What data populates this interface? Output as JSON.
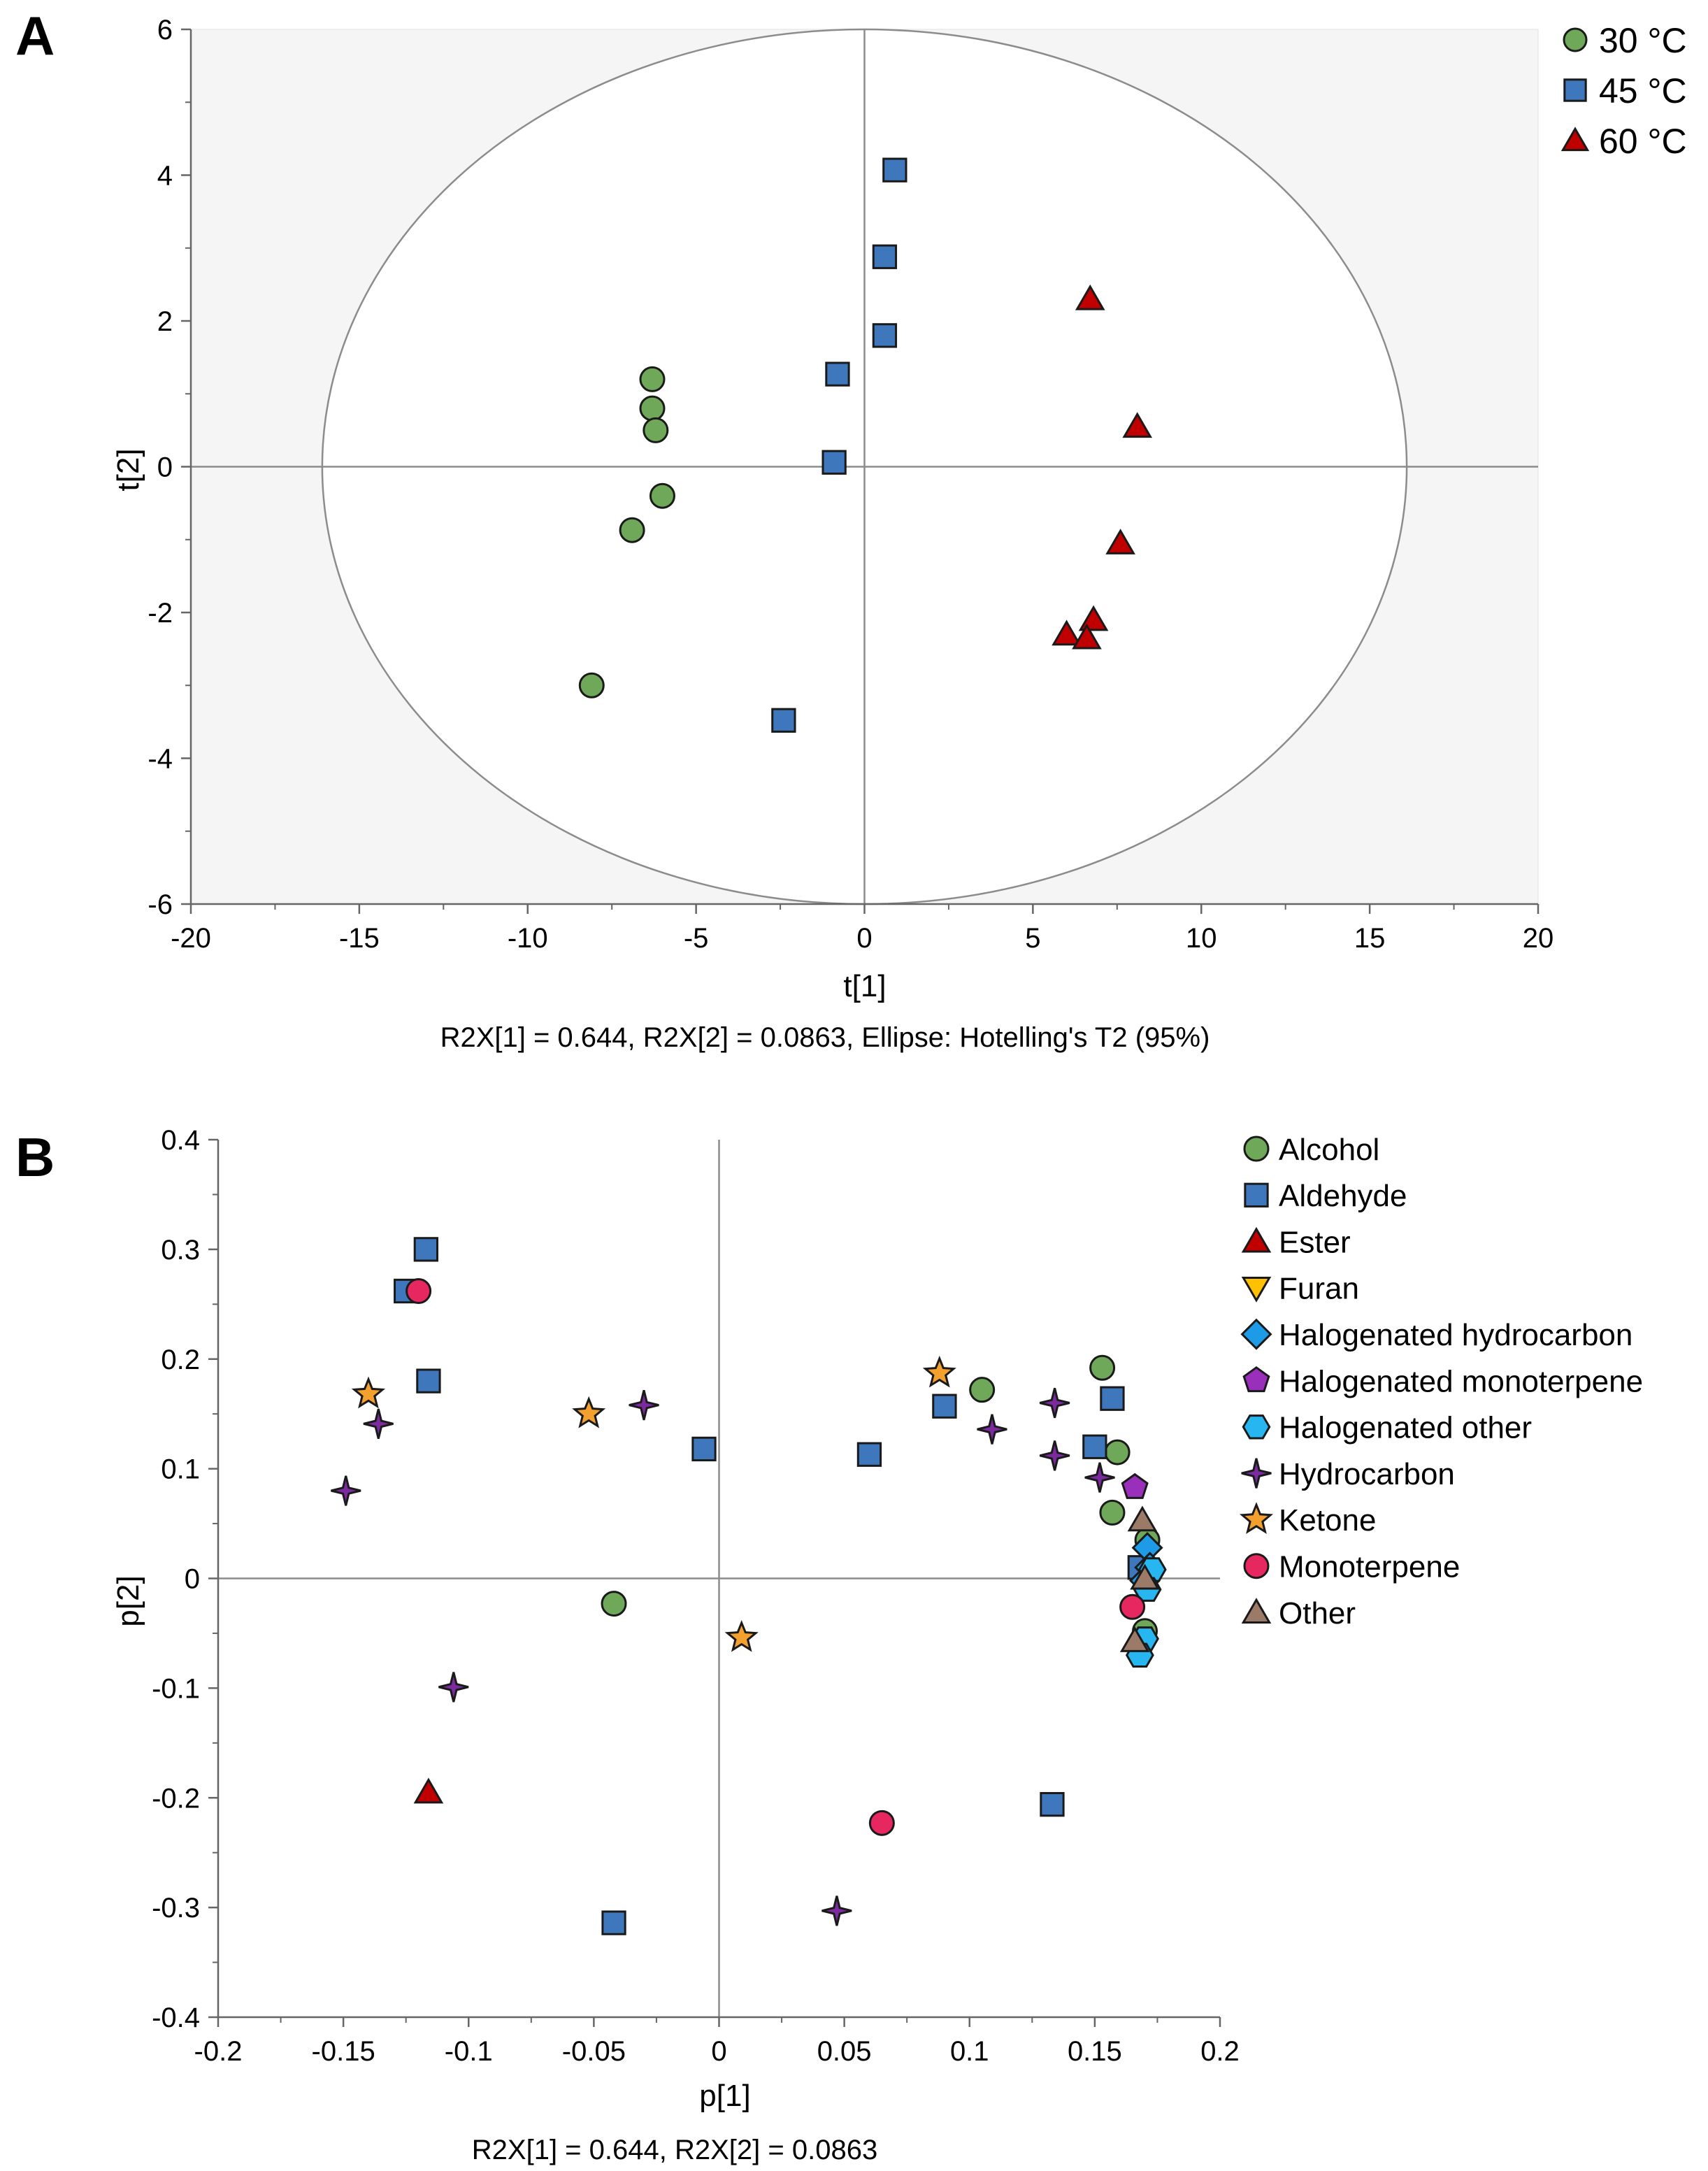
{
  "chart_data": [
    {
      "panel_label": "A",
      "type": "scatter",
      "title": "",
      "xlabel": "t[1]",
      "ylabel": "t[2]",
      "xlim": [
        -20,
        20
      ],
      "ylim": [
        -6,
        6
      ],
      "xticks": [
        "-20",
        "-15",
        "-10",
        "-5",
        "0",
        "5",
        "10",
        "15",
        "20"
      ],
      "yticks": [
        "6",
        "4",
        "2",
        "0",
        "-2",
        "-4",
        "-6"
      ],
      "caption": "R2X[1] = 0.644, R2X[2] = 0.0863, Ellipse: Hotelling's T2 (95%)",
      "ellipse": {
        "rx": 16.1,
        "ry": 6.0
      },
      "legend_position": "top-right",
      "series": [
        {
          "name": "30 °C",
          "marker": "circle",
          "color": "#70a85a",
          "points": [
            [
              -6.3,
              1.2
            ],
            [
              -6.3,
              0.8
            ],
            [
              -6.2,
              0.5
            ],
            [
              -6.0,
              -0.4
            ],
            [
              -6.9,
              -0.87
            ],
            [
              -8.1,
              -3.0
            ]
          ]
        },
        {
          "name": "45 °C",
          "marker": "square",
          "color": "#3f77bd",
          "points": [
            [
              0.9,
              4.07
            ],
            [
              0.6,
              2.88
            ],
            [
              0.6,
              1.8
            ],
            [
              -0.8,
              1.27
            ],
            [
              -0.9,
              0.06
            ],
            [
              -2.4,
              -3.48
            ]
          ]
        },
        {
          "name": "60 °C",
          "marker": "triangle",
          "color": "#c00000",
          "points": [
            [
              6.7,
              2.3
            ],
            [
              8.1,
              0.55
            ],
            [
              7.6,
              -1.05
            ],
            [
              6.8,
              -2.1
            ],
            [
              6.0,
              -2.3
            ],
            [
              6.6,
              -2.35
            ]
          ]
        }
      ]
    },
    {
      "panel_label": "B",
      "type": "scatter",
      "title": "",
      "xlabel": "p[1]",
      "ylabel": "p[2]",
      "xlim": [
        -0.2,
        0.2
      ],
      "ylim": [
        -0.4,
        0.4
      ],
      "xticks": [
        "-0.2",
        "-0.15",
        "-0.1",
        "-0.05",
        "0",
        "0.05",
        "0.1",
        "0.15",
        "0.2"
      ],
      "yticks": [
        "0.4",
        "0.3",
        "0.2",
        "0.1",
        "0",
        "-0.1",
        "-0.2",
        "-0.3",
        "-0.4"
      ],
      "caption": "R2X[1] = 0.644, R2X[2] = 0.0863",
      "legend_position": "top-right",
      "series": [
        {
          "name": "Alcohol",
          "marker": "circle",
          "color": "#70a85a",
          "points": [
            [
              0.153,
              0.192
            ],
            [
              0.105,
              0.172
            ],
            [
              0.159,
              0.115
            ],
            [
              0.157,
              0.06
            ],
            [
              0.171,
              0.035
            ],
            [
              0.17,
              -0.048
            ],
            [
              -0.042,
              -0.023
            ]
          ]
        },
        {
          "name": "Aldehyde",
          "marker": "square",
          "color": "#3f77bd",
          "points": [
            [
              -0.117,
              0.3
            ],
            [
              -0.125,
              0.262
            ],
            [
              -0.116,
              0.18
            ],
            [
              -0.006,
              0.118
            ],
            [
              0.06,
              0.113
            ],
            [
              0.09,
              0.157
            ],
            [
              0.157,
              0.164
            ],
            [
              0.15,
              0.12
            ],
            [
              0.168,
              0.01
            ],
            [
              0.133,
              -0.206
            ],
            [
              -0.042,
              -0.314
            ]
          ]
        },
        {
          "name": "Ester",
          "marker": "triangle",
          "color": "#c00000",
          "points": [
            [
              -0.116,
              -0.195
            ]
          ]
        },
        {
          "name": "Furan",
          "marker": "triangle-down",
          "color": "#ffc000",
          "points": []
        },
        {
          "name": "Halogenated hydrocarbon",
          "marker": "diamond",
          "color": "#1e9be6",
          "points": [
            [
              0.171,
              0.028
            ],
            [
              0.172,
              0.01
            ],
            [
              0.17,
              -0.002
            ]
          ]
        },
        {
          "name": "Halogenated monoterpene",
          "marker": "pentagon",
          "color": "#9a2fbc",
          "points": [
            [
              0.166,
              0.083
            ]
          ]
        },
        {
          "name": "Halogenated other",
          "marker": "hexagon",
          "color": "#27b6f0",
          "points": [
            [
              0.173,
              0.008
            ],
            [
              0.171,
              -0.01
            ],
            [
              0.17,
              -0.055
            ],
            [
              0.168,
              -0.07
            ]
          ]
        },
        {
          "name": "Hydrocarbon",
          "marker": "star4",
          "color": "#7b2b9e",
          "points": [
            [
              -0.149,
              0.08
            ],
            [
              -0.136,
              0.141
            ],
            [
              -0.03,
              0.158
            ],
            [
              -0.106,
              -0.099
            ],
            [
              0.109,
              0.136
            ],
            [
              0.134,
              0.16
            ],
            [
              0.134,
              0.112
            ],
            [
              0.152,
              0.092
            ],
            [
              0.047,
              -0.303
            ]
          ]
        },
        {
          "name": "Ketone",
          "marker": "star5",
          "color": "#f4a02f",
          "points": [
            [
              -0.14,
              0.168
            ],
            [
              -0.052,
              0.15
            ],
            [
              0.088,
              0.187
            ],
            [
              0.009,
              -0.054
            ]
          ]
        },
        {
          "name": "Monoterpene",
          "marker": "circle",
          "color": "#e7275f",
          "points": [
            [
              -0.12,
              0.262
            ],
            [
              0.165,
              -0.026
            ],
            [
              0.065,
              -0.223
            ]
          ]
        },
        {
          "name": "Other",
          "marker": "triangle",
          "color": "#9c7a68",
          "points": [
            [
              0.169,
              0.053
            ],
            [
              0.17,
              0.0
            ],
            [
              0.166,
              -0.057
            ]
          ]
        }
      ]
    }
  ]
}
